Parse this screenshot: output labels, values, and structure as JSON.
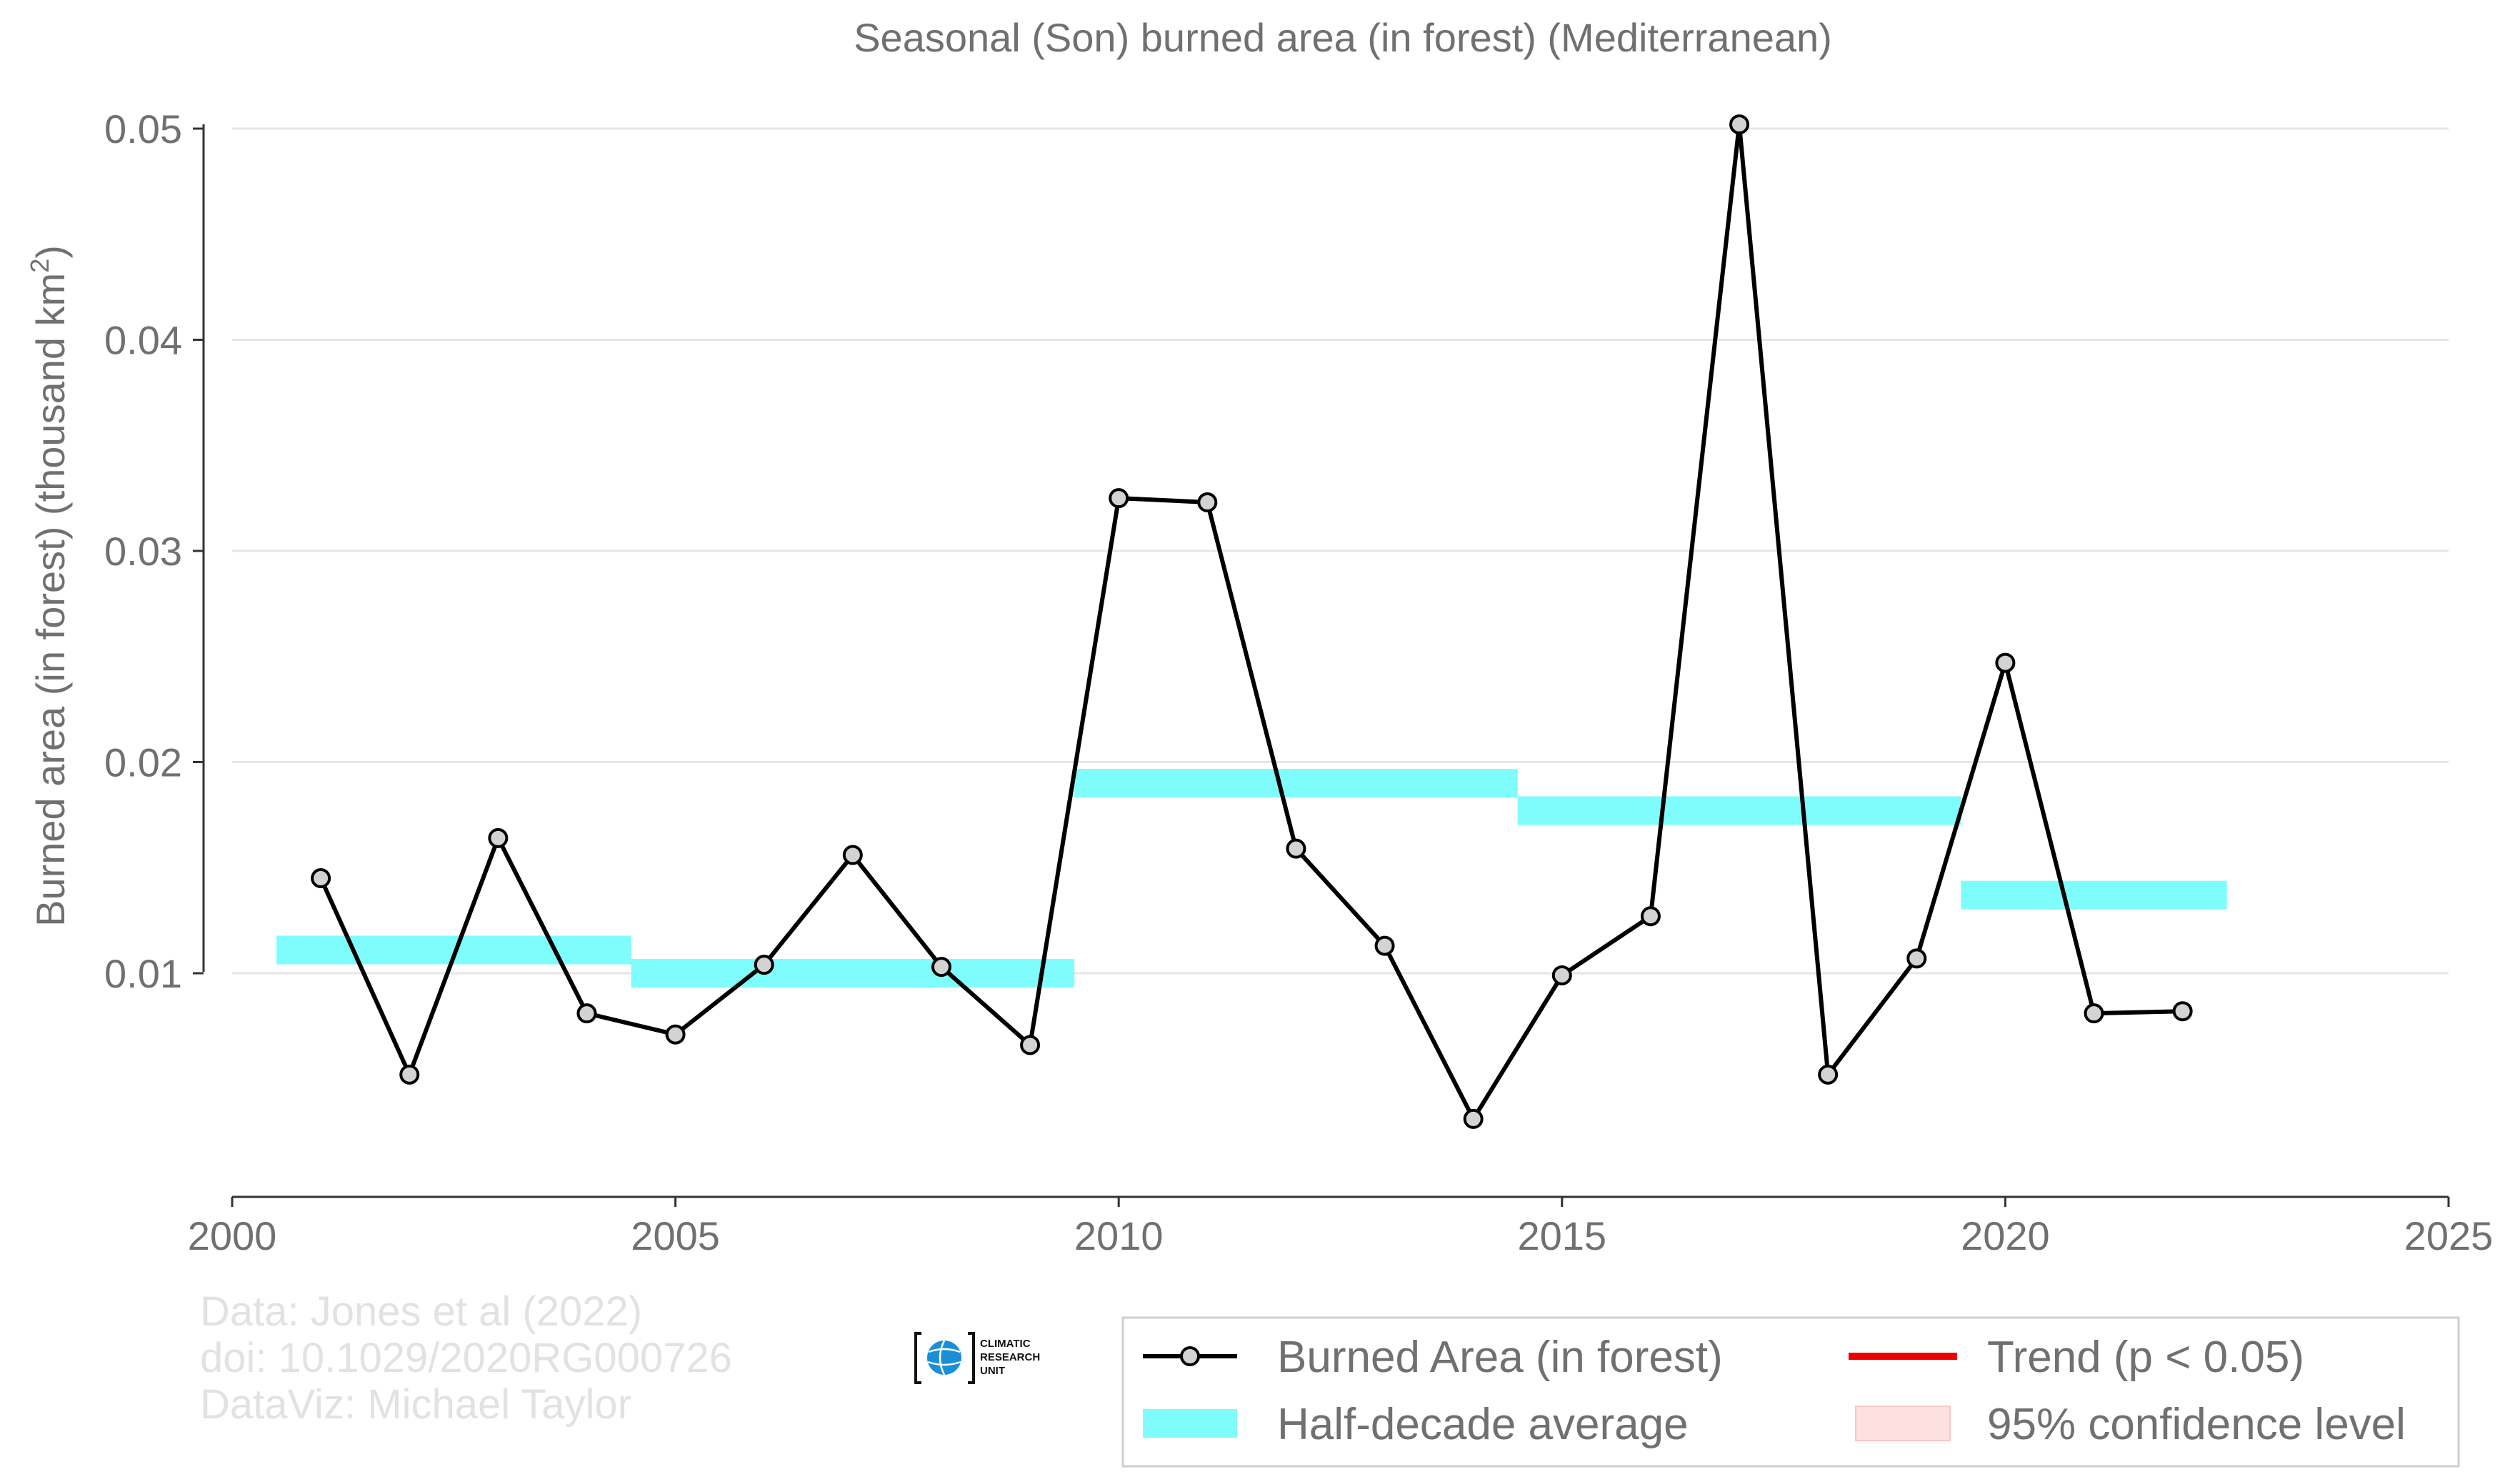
{
  "chart_data": {
    "type": "line",
    "title": "Seasonal (Son) burned area (in forest) (Mediterranean)",
    "ylabel": "Burned area (in forest) (thousand km",
    "ylabel_sup": "2",
    "ylabel_end": ")",
    "xlim": [
      2000,
      2025
    ],
    "ylim": [
      0.0,
      0.0515
    ],
    "x_ticks": [
      2000,
      2005,
      2010,
      2015,
      2020,
      2025
    ],
    "x_tick_labels": [
      "2000",
      "2005",
      "2010",
      "2015",
      "2020",
      "2025"
    ],
    "y_ticks": [
      0.01,
      0.02,
      0.03,
      0.04,
      0.05
    ],
    "y_tick_labels": [
      "0.01",
      "0.02",
      "0.03",
      "0.04",
      "0.05"
    ],
    "grid": "horizontal",
    "legend_position": "bottom-right",
    "series": [
      {
        "name": "Burned Area (in forest)",
        "color": "#000000",
        "marker_fill": "#d3d3d3",
        "x": [
          2001,
          2002,
          2003,
          2004,
          2005,
          2006,
          2007,
          2008,
          2009,
          2010,
          2011,
          2012,
          2013,
          2014,
          2015,
          2016,
          2017,
          2018,
          2019,
          2020,
          2021,
          2022
        ],
        "y": [
          0.0145,
          0.0052,
          0.0164,
          0.0081,
          0.0071,
          0.0104,
          0.0156,
          0.0103,
          0.0066,
          0.0325,
          0.0323,
          0.0159,
          0.0113,
          0.0031,
          0.0099,
          0.0127,
          0.0502,
          0.0052,
          0.0107,
          0.0247,
          0.0081,
          0.0082
        ]
      }
    ],
    "half_decade_average": {
      "name": "Half-decade average",
      "color": "#7ffdfd",
      "segments": [
        {
          "x_start": 2000.5,
          "x_end": 2004.5,
          "y": 0.0111
        },
        {
          "x_start": 2004.5,
          "x_end": 2009.5,
          "y": 0.01
        },
        {
          "x_start": 2009.5,
          "x_end": 2014.5,
          "y": 0.019
        },
        {
          "x_start": 2014.5,
          "x_end": 2019.5,
          "y": 0.0177
        },
        {
          "x_start": 2019.5,
          "x_end": 2022.5,
          "y": 0.0137
        }
      ]
    },
    "legend": [
      {
        "label": "Burned Area (in forest)",
        "kind": "line-marker",
        "color": "#000000"
      },
      {
        "label": "Trend (p < 0.05)",
        "kind": "line",
        "color": "#ee0000"
      },
      {
        "label": "Half-decade average",
        "kind": "band",
        "color": "#7ffdfd"
      },
      {
        "label": "95% confidence level",
        "kind": "band",
        "color": "#fde0e0"
      }
    ]
  },
  "credits": {
    "lines": [
      "Data: Jones et al (2022)",
      "doi: 10.1029/2020RG000726",
      "DataViz: Michael Taylor"
    ]
  },
  "logo": {
    "lines": [
      "CLIMATIC",
      "RESEARCH",
      "UNIT"
    ],
    "globe_color": "#1a8fd8"
  }
}
